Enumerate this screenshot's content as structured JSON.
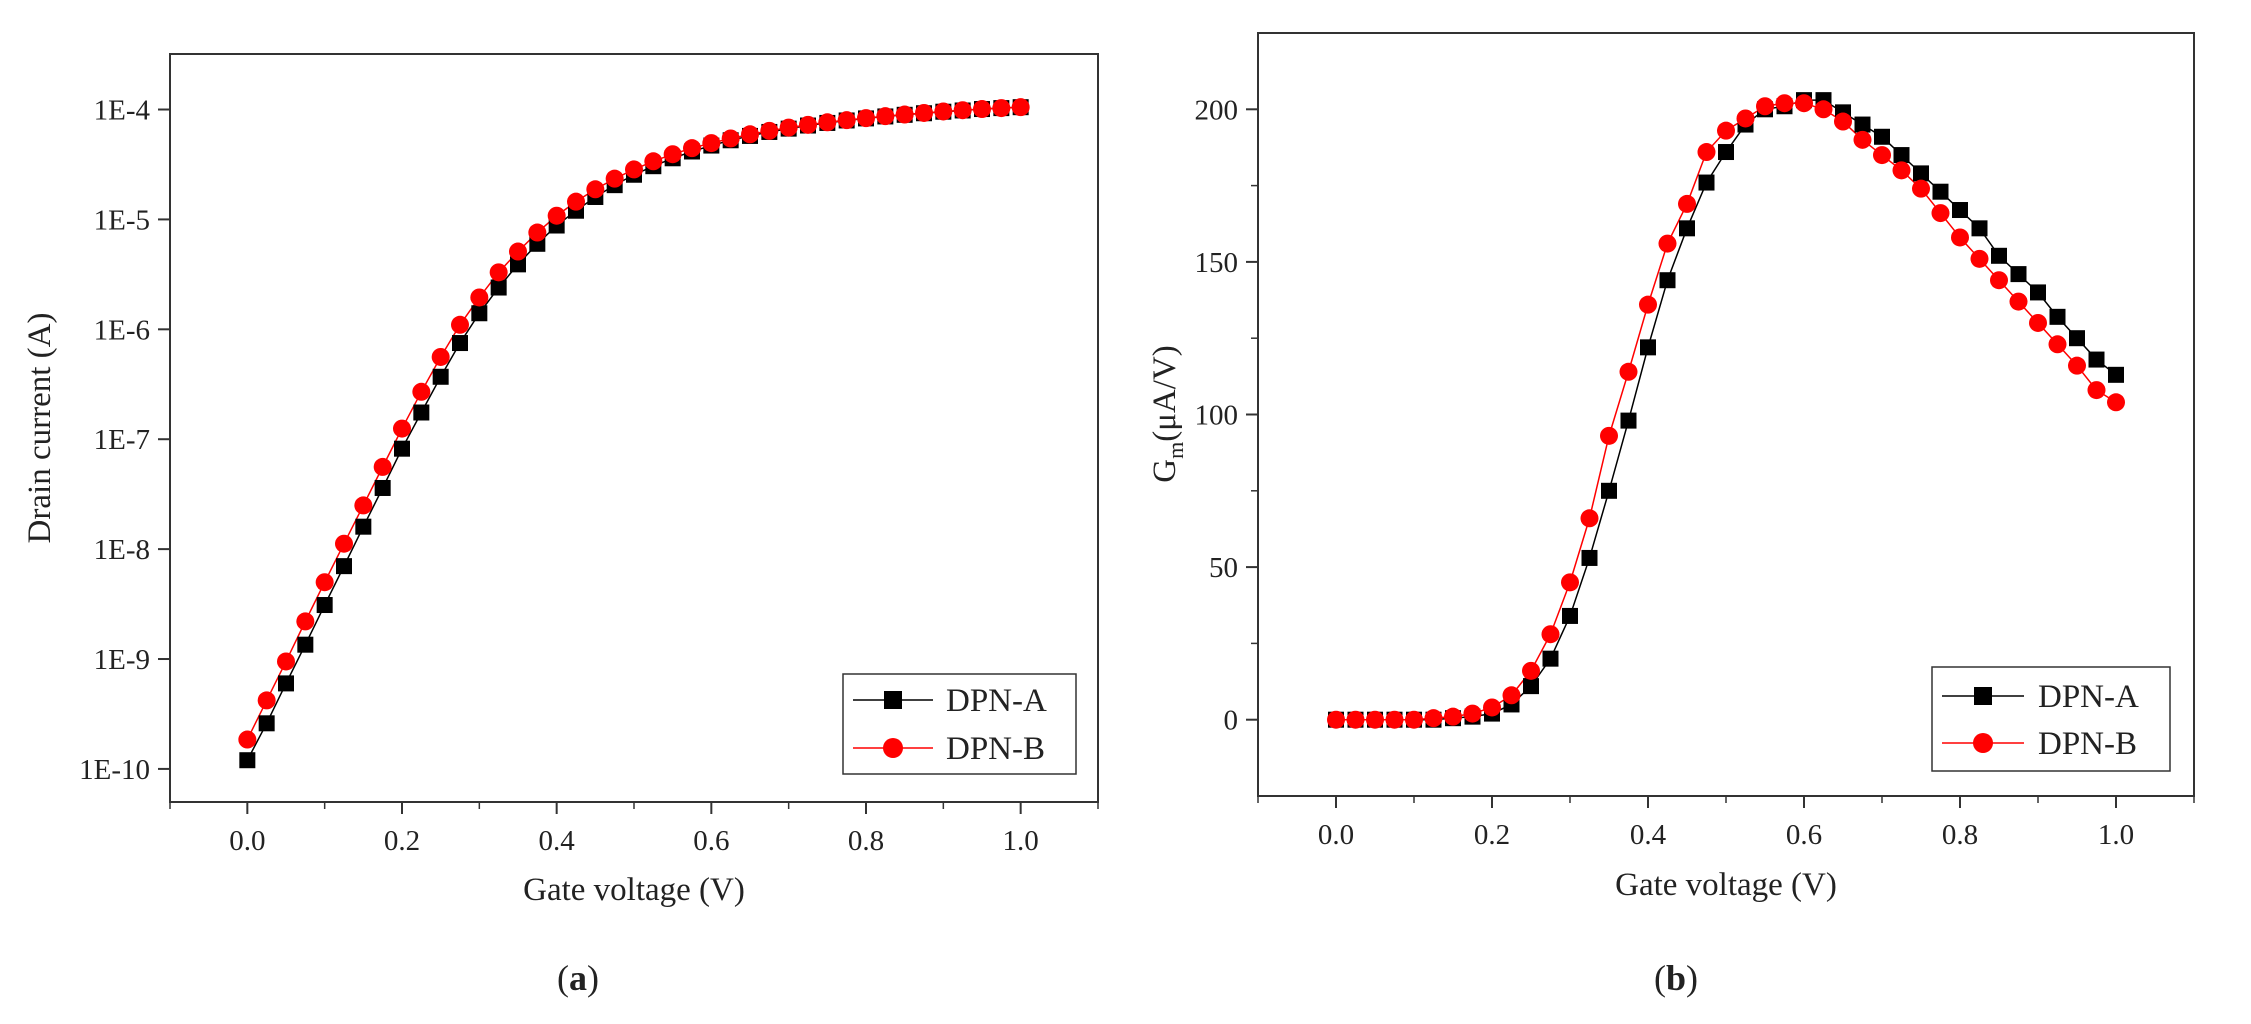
{
  "figure": {
    "panels": [
      {
        "caption_open": "(",
        "caption_letter": "a",
        "caption_close": ")"
      },
      {
        "caption_open": "(",
        "caption_letter": "b",
        "caption_close": ")"
      }
    ]
  },
  "chart_data": [
    {
      "type": "line",
      "panel": "a",
      "title": "",
      "xlabel": "Gate voltage (V)",
      "ylabel": "Drain current (A)",
      "xscale": "linear",
      "yscale": "log",
      "xlim": [
        -0.1,
        1.1
      ],
      "ylim": [
        5e-11,
        0.00032
      ],
      "xticks": [
        0.0,
        0.2,
        0.4,
        0.6,
        0.8,
        1.0
      ],
      "xtick_labels": [
        "0.0",
        "0.2",
        "0.4",
        "0.6",
        "0.8",
        "1.0"
      ],
      "yticks": [
        1e-10,
        1e-09,
        1e-08,
        1e-07,
        1e-06,
        1e-05,
        0.0001
      ],
      "ytick_labels": [
        "1E-10",
        "1E-9",
        "1E-8",
        "1E-7",
        "1E-6",
        "1E-5",
        "1E-4"
      ],
      "grid": false,
      "legend_position": "bottom-right",
      "x": [
        0.0,
        0.025,
        0.05,
        0.075,
        0.1,
        0.125,
        0.15,
        0.175,
        0.2,
        0.225,
        0.25,
        0.275,
        0.3,
        0.325,
        0.35,
        0.375,
        0.4,
        0.425,
        0.45,
        0.475,
        0.5,
        0.525,
        0.55,
        0.575,
        0.6,
        0.625,
        0.65,
        0.675,
        0.7,
        0.725,
        0.75,
        0.775,
        0.8,
        0.825,
        0.85,
        0.875,
        0.9,
        0.925,
        0.95,
        0.975,
        1.0
      ],
      "series": [
        {
          "name": "DPN-A",
          "marker": "square",
          "color": "#000000",
          "values": [
            1.2e-10,
            2.6e-10,
            6e-10,
            1.35e-09,
            3.1e-09,
            7e-09,
            1.6e-08,
            3.6e-08,
            8.2e-08,
            1.75e-07,
            3.7e-07,
            7.5e-07,
            1.4e-06,
            2.4e-06,
            3.9e-06,
            6e-06,
            8.8e-06,
            1.2e-05,
            1.6e-05,
            2.05e-05,
            2.55e-05,
            3.05e-05,
            3.6e-05,
            4.15e-05,
            4.7e-05,
            5.25e-05,
            5.75e-05,
            6.25e-05,
            6.7e-05,
            7.15e-05,
            7.55e-05,
            7.95e-05,
            8.3e-05,
            8.65e-05,
            8.95e-05,
            9.25e-05,
            9.55e-05,
            9.8e-05,
            0.000101,
            0.000103,
            0.000105
          ]
        },
        {
          "name": "DPN-B",
          "marker": "circle",
          "color": "#ff0000",
          "values": [
            1.85e-10,
            4.2e-10,
            9.5e-10,
            2.2e-09,
            5e-09,
            1.12e-08,
            2.5e-08,
            5.6e-08,
            1.25e-07,
            2.7e-07,
            5.6e-07,
            1.1e-06,
            1.95e-06,
            3.3e-06,
            5.1e-06,
            7.6e-06,
            1.08e-05,
            1.45e-05,
            1.88e-05,
            2.35e-05,
            2.85e-05,
            3.38e-05,
            3.92e-05,
            4.45e-05,
            4.95e-05,
            5.45e-05,
            5.95e-05,
            6.4e-05,
            6.85e-05,
            7.25e-05,
            7.65e-05,
            8e-05,
            8.35e-05,
            8.7e-05,
            9e-05,
            9.3e-05,
            9.6e-05,
            9.85e-05,
            0.000101,
            0.000103,
            0.000105
          ]
        }
      ]
    },
    {
      "type": "line",
      "panel": "b",
      "title": "",
      "xlabel": "Gate voltage (V)",
      "ylabel_main": "G",
      "ylabel_sub": "m",
      "ylabel_rest": "(μA/V)",
      "xscale": "linear",
      "yscale": "linear",
      "xlim": [
        -0.1,
        1.1
      ],
      "ylim": [
        -25,
        225
      ],
      "xticks": [
        0.0,
        0.2,
        0.4,
        0.6,
        0.8,
        1.0
      ],
      "xtick_labels": [
        "0.0",
        "0.2",
        "0.4",
        "0.6",
        "0.8",
        "1.0"
      ],
      "yticks": [
        0,
        50,
        100,
        150,
        200
      ],
      "ytick_labels": [
        "0",
        "50",
        "100",
        "150",
        "200"
      ],
      "grid": false,
      "legend_position": "bottom-right",
      "x": [
        0.0,
        0.025,
        0.05,
        0.075,
        0.1,
        0.125,
        0.15,
        0.175,
        0.2,
        0.225,
        0.25,
        0.275,
        0.3,
        0.325,
        0.35,
        0.375,
        0.4,
        0.425,
        0.45,
        0.475,
        0.5,
        0.525,
        0.55,
        0.575,
        0.6,
        0.625,
        0.65,
        0.675,
        0.7,
        0.725,
        0.75,
        0.775,
        0.8,
        0.825,
        0.85,
        0.875,
        0.9,
        0.925,
        0.95,
        0.975,
        1.0
      ],
      "series": [
        {
          "name": "DPN-A",
          "marker": "square",
          "color": "#000000",
          "values": [
            0,
            0,
            0,
            0,
            0,
            0,
            0.5,
            1,
            2,
            5,
            11,
            20,
            34,
            53,
            75,
            98,
            122,
            144,
            161,
            176,
            186,
            195,
            200,
            201,
            203,
            203,
            199,
            195,
            191,
            185,
            179,
            173,
            167,
            161,
            152,
            146,
            140,
            132,
            125,
            118,
            113
          ]
        },
        {
          "name": "DPN-B",
          "marker": "circle",
          "color": "#ff0000",
          "values": [
            0,
            0,
            0,
            0,
            0,
            0.5,
            1,
            2,
            4,
            8,
            16,
            28,
            45,
            66,
            93,
            114,
            136,
            156,
            169,
            186,
            193,
            197,
            201,
            202,
            202,
            200,
            196,
            190,
            185,
            180,
            174,
            166,
            158,
            151,
            144,
            137,
            130,
            123,
            116,
            108,
            104
          ]
        }
      ]
    }
  ]
}
